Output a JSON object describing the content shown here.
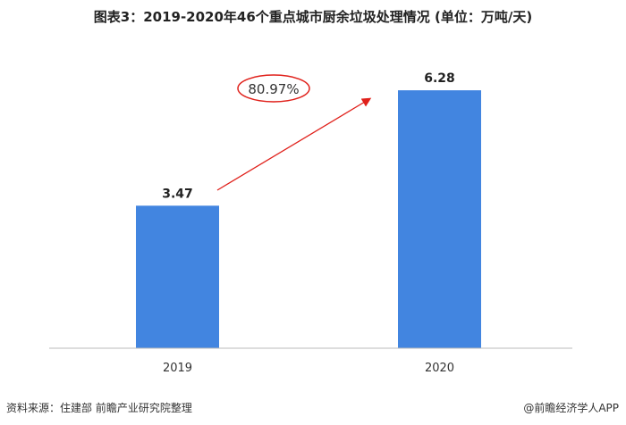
{
  "chart_data": {
    "type": "bar",
    "title": "图表3：2019-2020年46个重点城市厨余垃圾处理情况 (单位：万吨/天)",
    "categories": [
      "2019",
      "2020"
    ],
    "values": [
      3.47,
      6.28
    ],
    "data_labels": [
      "3.47",
      "6.28"
    ],
    "ylim": [
      0,
      7
    ],
    "grid": false,
    "bar_color": "#4285E0",
    "annotation": {
      "text": "80.97%",
      "color": "#E0201A",
      "type": "growth-arrow"
    }
  },
  "footer": {
    "source": "资料来源：住建部 前瞻产业研究院整理",
    "credit": "@前瞻经济学人APP"
  }
}
